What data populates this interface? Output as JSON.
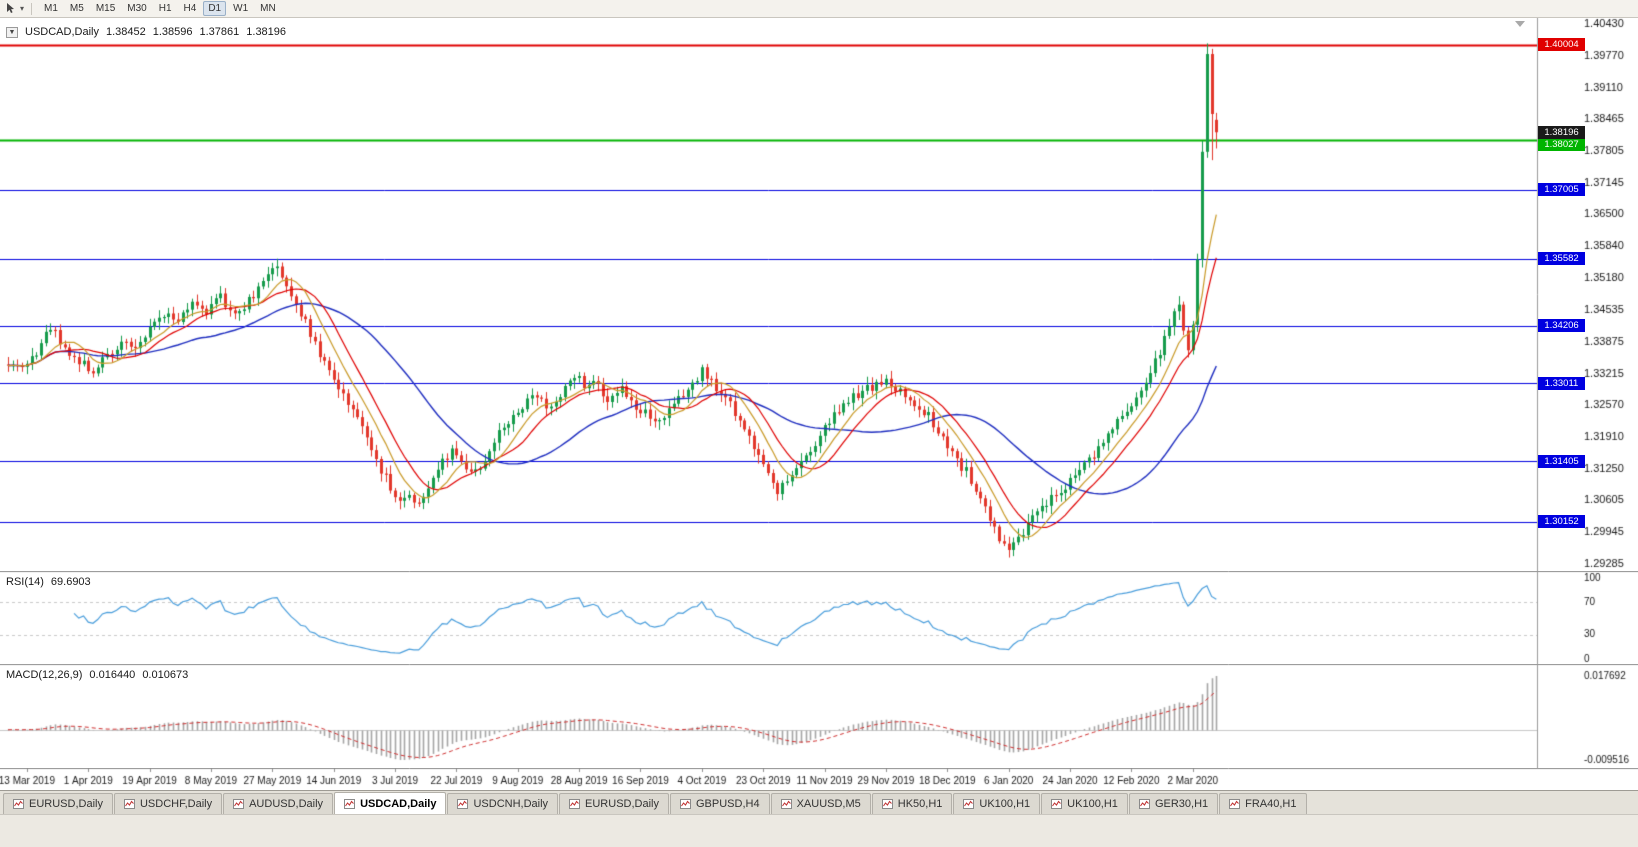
{
  "toolbar": {
    "timeframes": [
      "M1",
      "M5",
      "M15",
      "M30",
      "H1",
      "H4",
      "D1",
      "W1",
      "MN"
    ],
    "active_timeframe": "D1"
  },
  "chart_header": {
    "symbol": "USDCAD,Daily",
    "open": "1.38452",
    "high": "1.38596",
    "low": "1.37861",
    "close": "1.38196"
  },
  "rsi_panel": {
    "label": "RSI(14)",
    "value": "69.6903",
    "scale": [
      "100",
      "70",
      "30",
      "0"
    ]
  },
  "macd_panel": {
    "label": "MACD(12,26,9)",
    "value_macd": "0.016440",
    "value_signal": "0.010673",
    "scale_top": "0.017692",
    "scale_bottom": "-0.009516"
  },
  "tabs": {
    "items": [
      "EURUSD,Daily",
      "USDCHF,Daily",
      "AUDUSD,Daily",
      "USDCAD,Daily",
      "USDCNH,Daily",
      "EURUSD,Daily",
      "GBPUSD,H4",
      "XAUUSD,M5",
      "HK50,H1",
      "UK100,H1",
      "UK100,H1",
      "GER30,H1",
      "FRA40,H1"
    ],
    "active_index": 3
  },
  "colors": {
    "up_candle": "#169b4b",
    "down_candle": "#e2372b",
    "ma_fast": "#c99a28",
    "ma_mid": "#e00000",
    "ma_slow": "#1f2ec0",
    "rsi_line": "#4a9edc",
    "macd_histogram": "#a6a6a6",
    "macd_signal": "#d03030",
    "level_red": "#e00000",
    "level_green": "#00b400",
    "level_blue": "#0000e0",
    "current_price_box": "#1a1a1a"
  },
  "chart_data": {
    "type": "candlestick",
    "title": "USDCAD Daily",
    "bars_count": 257,
    "price_range": [
      1.29285,
      1.4043
    ],
    "price_axis_ticks": [
      "1.40430",
      "1.39770",
      "1.39110",
      "1.38465",
      "1.37805",
      "1.37145",
      "1.36500",
      "1.35840",
      "1.35180",
      "1.34535",
      "1.33875",
      "1.33215",
      "1.32570",
      "1.31910",
      "1.31250",
      "1.30605",
      "1.29945",
      "1.29285"
    ],
    "x_axis_labels": [
      "13 Mar 2019",
      "1 Apr 2019",
      "19 Apr 2019",
      "8 May 2019",
      "27 May 2019",
      "14 Jun 2019",
      "3 Jul 2019",
      "22 Jul 2019",
      "9 Aug 2019",
      "28 Aug 2019",
      "16 Sep 2019",
      "4 Oct 2019",
      "23 Oct 2019",
      "11 Nov 2019",
      "29 Nov 2019",
      "18 Dec 2019",
      "6 Jan 2020",
      "24 Jan 2020",
      "12 Feb 2020",
      "2 Mar 2020"
    ],
    "x_first_label_index": 4,
    "x_label_step": 13,
    "last_bar": {
      "open": 1.38452,
      "high": 1.38596,
      "low": 1.37861,
      "close": 1.38196
    },
    "current_price_label": "1.38196",
    "horizontal_levels": [
      {
        "price": 1.40004,
        "label": "1.40004",
        "color_key": "level_red",
        "width": 2,
        "label_offset": 0
      },
      {
        "price": 1.38027,
        "label": "1.38027",
        "color_key": "level_green",
        "width": 2,
        "label_offset": 4
      },
      {
        "price": 1.37005,
        "label": "1.37005",
        "color_key": "level_blue",
        "width": 1,
        "label_offset": 0
      },
      {
        "price": 1.35582,
        "label": "1.35582",
        "color_key": "level_blue",
        "width": 1,
        "label_offset": 0
      },
      {
        "price": 1.34206,
        "label": "1.34206",
        "color_key": "level_blue",
        "width": 1,
        "label_offset": 0
      },
      {
        "price": 1.33011,
        "label": "1.33011",
        "color_key": "level_blue",
        "width": 1,
        "label_offset": 0
      },
      {
        "price": 1.31405,
        "label": "1.31405",
        "color_key": "level_blue",
        "width": 1,
        "label_offset": 0
      },
      {
        "price": 1.30152,
        "label": "1.30152",
        "color_key": "level_blue",
        "width": 1,
        "label_offset": 0
      }
    ],
    "moving_average_periods": {
      "fast": 8,
      "mid": 13,
      "slow": 34
    },
    "close_path_anchors": [
      [
        0,
        1.3345
      ],
      [
        3,
        1.3332
      ],
      [
        6,
        1.3368
      ],
      [
        9,
        1.342
      ],
      [
        12,
        1.3378
      ],
      [
        15,
        1.3342
      ],
      [
        18,
        1.333
      ],
      [
        21,
        1.336
      ],
      [
        24,
        1.3385
      ],
      [
        27,
        1.3368
      ],
      [
        30,
        1.3415
      ],
      [
        33,
        1.3448
      ],
      [
        36,
        1.343
      ],
      [
        39,
        1.3468
      ],
      [
        42,
        1.3452
      ],
      [
        45,
        1.3478
      ],
      [
        48,
        1.3446
      ],
      [
        51,
        1.3472
      ],
      [
        54,
        1.3505
      ],
      [
        57,
        1.3552
      ],
      [
        59,
        1.3502
      ],
      [
        61,
        1.3462
      ],
      [
        63,
        1.343
      ],
      [
        65,
        1.3378
      ],
      [
        67,
        1.334
      ],
      [
        70,
        1.3292
      ],
      [
        73,
        1.3248
      ],
      [
        76,
        1.3192
      ],
      [
        79,
        1.3125
      ],
      [
        81,
        1.3082
      ],
      [
        83,
        1.3058
      ],
      [
        85,
        1.3076
      ],
      [
        87,
        1.3052
      ],
      [
        89,
        1.3092
      ],
      [
        92,
        1.3135
      ],
      [
        94,
        1.3168
      ],
      [
        96,
        1.3138
      ],
      [
        98,
        1.3108
      ],
      [
        101,
        1.3146
      ],
      [
        104,
        1.3196
      ],
      [
        107,
        1.3238
      ],
      [
        109,
        1.3252
      ],
      [
        112,
        1.3274
      ],
      [
        115,
        1.3252
      ],
      [
        118,
        1.3288
      ],
      [
        120,
        1.3322
      ],
      [
        122,
        1.3292
      ],
      [
        124,
        1.3312
      ],
      [
        127,
        1.3272
      ],
      [
        130,
        1.3292
      ],
      [
        132,
        1.3262
      ],
      [
        135,
        1.3242
      ],
      [
        138,
        1.3216
      ],
      [
        141,
        1.3252
      ],
      [
        144,
        1.3294
      ],
      [
        147,
        1.3328
      ],
      [
        149,
        1.3308
      ],
      [
        151,
        1.3282
      ],
      [
        154,
        1.3242
      ],
      [
        157,
        1.3192
      ],
      [
        159,
        1.3148
      ],
      [
        161,
        1.3108
      ],
      [
        163,
        1.3078
      ],
      [
        165,
        1.3095
      ],
      [
        168,
        1.3135
      ],
      [
        171,
        1.3175
      ],
      [
        174,
        1.3222
      ],
      [
        177,
        1.3252
      ],
      [
        180,
        1.328
      ],
      [
        183,
        1.3296
      ],
      [
        186,
        1.3302
      ],
      [
        189,
        1.3286
      ],
      [
        192,
        1.3262
      ],
      [
        195,
        1.3232
      ],
      [
        197,
        1.3198
      ],
      [
        200,
        1.3152
      ],
      [
        203,
        1.3118
      ],
      [
        206,
        1.3068
      ],
      [
        208,
        1.3022
      ],
      [
        210,
        1.2982
      ],
      [
        212,
        1.2968
      ],
      [
        215,
        1.2998
      ],
      [
        218,
        1.3032
      ],
      [
        221,
        1.3062
      ],
      [
        224,
        1.3088
      ],
      [
        227,
        1.3122
      ],
      [
        230,
        1.3158
      ],
      [
        233,
        1.3196
      ],
      [
        236,
        1.3232
      ],
      [
        239,
        1.3262
      ],
      [
        241,
        1.3298
      ],
      [
        243,
        1.3342
      ],
      [
        245,
        1.3392
      ],
      [
        247,
        1.3442
      ],
      [
        248,
        1.3462
      ],
      [
        249,
        1.3408
      ],
      [
        250,
        1.3368
      ],
      [
        251,
        1.3422
      ],
      [
        252,
        1.3558
      ],
      [
        253,
        1.3778
      ],
      [
        254,
        1.3978
      ],
      [
        255,
        1.3858
      ],
      [
        256,
        1.38196
      ]
    ],
    "indicators": {
      "rsi": {
        "period": 14,
        "current": 69.6903,
        "levels": [
          70,
          30
        ],
        "range": [
          0,
          100
        ]
      },
      "macd": {
        "fast": 12,
        "slow": 26,
        "signal": 9,
        "current_macd": 0.01644,
        "current_signal": 0.010673,
        "scale_max": 0.017692,
        "scale_min": -0.009516
      }
    }
  }
}
